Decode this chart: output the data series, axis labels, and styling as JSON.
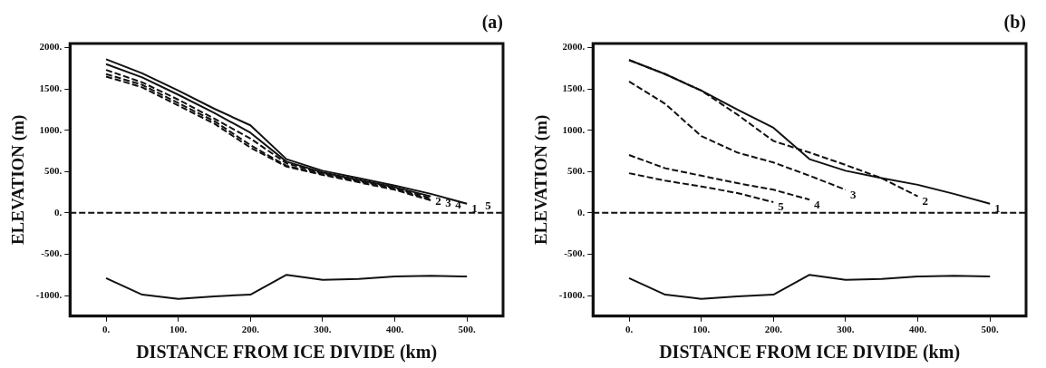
{
  "chart_data": [
    {
      "type": "line",
      "title": "(a)",
      "xlabel": "DISTANCE FROM ICE DIVIDE (km)",
      "ylabel": "ELEVATION (m)",
      "xlim": [
        -50,
        550
      ],
      "ylim": [
        -1250,
        2050
      ],
      "xticks": [
        {
          "value": 0,
          "label": "0."
        },
        {
          "value": 100,
          "label": "100."
        },
        {
          "value": 200,
          "label": "200."
        },
        {
          "value": 300,
          "label": "300."
        },
        {
          "value": 400,
          "label": "400."
        },
        {
          "value": 500,
          "label": "500."
        }
      ],
      "yticks": [
        {
          "value": -1000,
          "label": "-1000."
        },
        {
          "value": -500,
          "label": "-500."
        },
        {
          "value": 0,
          "label": "0."
        },
        {
          "value": 500,
          "label": "500."
        },
        {
          "value": 1000,
          "label": "1000."
        },
        {
          "value": 1500,
          "label": "1500."
        },
        {
          "value": 2000,
          "label": "2000."
        }
      ],
      "grid": false,
      "legend": false,
      "marker": "none",
      "ref_lines": [
        {
          "axis": "y",
          "value": 0,
          "line_style": "dashed",
          "color": "#111111"
        }
      ],
      "series": [
        {
          "name": "1",
          "color": "#111111",
          "line_style": "solid",
          "x": [
            0,
            50,
            100,
            150,
            200,
            250,
            300,
            350,
            400,
            450,
            500
          ],
          "values": [
            1860,
            1690,
            1480,
            1260,
            1060,
            650,
            510,
            420,
            330,
            230,
            110
          ]
        },
        {
          "name": "2",
          "color": "#111111",
          "line_style": "solid",
          "x": [
            0,
            50,
            100,
            150,
            200,
            250,
            300,
            350,
            400,
            450
          ],
          "values": [
            1800,
            1640,
            1430,
            1210,
            970,
            620,
            490,
            400,
            310,
            200
          ]
        },
        {
          "name": "3",
          "color": "#111111",
          "line_style": "dashed",
          "x": [
            0,
            50,
            100,
            150,
            200,
            250,
            300,
            350,
            400,
            450
          ],
          "values": [
            1730,
            1580,
            1370,
            1140,
            900,
            600,
            480,
            390,
            300,
            180
          ]
        },
        {
          "name": "4",
          "color": "#111111",
          "line_style": "dashed",
          "x": [
            0,
            50,
            100,
            150,
            200,
            250,
            300,
            350,
            400,
            450
          ],
          "values": [
            1680,
            1550,
            1330,
            1110,
            820,
            570,
            470,
            380,
            290,
            160
          ]
        },
        {
          "name": "5",
          "color": "#111111",
          "line_style": "dashed",
          "x": [
            0,
            50,
            100,
            150,
            200,
            250,
            300,
            350,
            400,
            450
          ],
          "values": [
            1650,
            1520,
            1300,
            1080,
            790,
            560,
            460,
            370,
            280,
            150
          ]
        },
        {
          "color": "#111111",
          "line_style": "solid",
          "x": [
            0,
            50,
            100,
            150,
            200,
            250,
            300,
            350,
            400,
            450,
            500
          ],
          "values": [
            -790,
            -990,
            -1040,
            -1010,
            -990,
            -750,
            -810,
            -800,
            -770,
            -760,
            -770
          ]
        }
      ]
    },
    {
      "type": "line",
      "title": "(b)",
      "xlabel": "DISTANCE FROM ICE DIVIDE (km)",
      "ylabel": "ELEVATION (m)",
      "xlim": [
        -50,
        550
      ],
      "ylim": [
        -1250,
        2050
      ],
      "xticks": [
        {
          "value": 0,
          "label": "0."
        },
        {
          "value": 100,
          "label": "100."
        },
        {
          "value": 200,
          "label": "200."
        },
        {
          "value": 300,
          "label": "300."
        },
        {
          "value": 400,
          "label": "400."
        },
        {
          "value": 500,
          "label": "500."
        }
      ],
      "yticks": [
        {
          "value": -1000,
          "label": "-1000."
        },
        {
          "value": -500,
          "label": "-500."
        },
        {
          "value": 0,
          "label": "0."
        },
        {
          "value": 500,
          "label": "500."
        },
        {
          "value": 1000,
          "label": "1000."
        },
        {
          "value": 1500,
          "label": "1500."
        },
        {
          "value": 2000,
          "label": "2000."
        }
      ],
      "grid": false,
      "legend": false,
      "marker": "none",
      "ref_lines": [
        {
          "axis": "y",
          "value": 0,
          "line_style": "dashed",
          "color": "#111111"
        }
      ],
      "series": [
        {
          "name": "1",
          "color": "#111111",
          "line_style": "solid",
          "x": [
            0,
            50,
            100,
            150,
            200,
            250,
            300,
            350,
            400,
            450,
            500
          ],
          "values": [
            1850,
            1680,
            1480,
            1250,
            1030,
            650,
            510,
            420,
            340,
            230,
            110
          ]
        },
        {
          "name": "2",
          "color": "#111111",
          "line_style": "dashed",
          "x": [
            0,
            50,
            100,
            150,
            200,
            250,
            300,
            350,
            400
          ],
          "values": [
            1850,
            1680,
            1480,
            1190,
            870,
            730,
            580,
            420,
            200
          ]
        },
        {
          "name": "3",
          "color": "#111111",
          "line_style": "dashed",
          "x": [
            0,
            50,
            100,
            150,
            200,
            250,
            300
          ],
          "values": [
            1590,
            1320,
            930,
            730,
            610,
            450,
            280
          ]
        },
        {
          "name": "4",
          "color": "#111111",
          "line_style": "dashed",
          "x": [
            0,
            50,
            100,
            150,
            200,
            250
          ],
          "values": [
            700,
            540,
            450,
            360,
            280,
            160
          ]
        },
        {
          "name": "5",
          "color": "#111111",
          "line_style": "dashed",
          "x": [
            0,
            50,
            100,
            150,
            200
          ],
          "values": [
            480,
            390,
            320,
            240,
            130
          ]
        },
        {
          "color": "#111111",
          "line_style": "solid",
          "x": [
            0,
            50,
            100,
            150,
            200,
            250,
            300,
            350,
            400,
            450,
            500
          ],
          "values": [
            -790,
            -990,
            -1040,
            -1010,
            -990,
            -750,
            -810,
            -800,
            -770,
            -760,
            -770
          ]
        }
      ]
    }
  ]
}
